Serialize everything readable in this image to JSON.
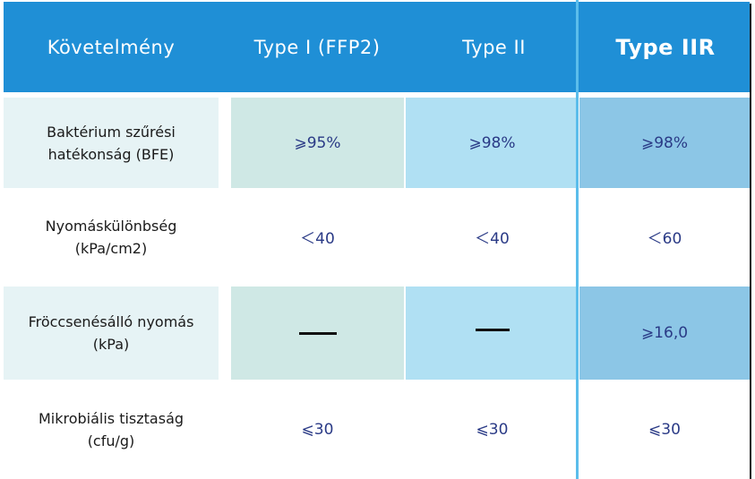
{
  "table": {
    "headers": [
      "Követelmény",
      "Type I (FFP2)",
      "Type II",
      "Type IIR"
    ],
    "rows": [
      {
        "label_line1": "Baktérium szűrési",
        "label_line2": "hatékonság (BFE)",
        "values": [
          "⩾95%",
          "⩾98%",
          "⩾98%"
        ]
      },
      {
        "label_line1": "Nyomáskülönbség",
        "label_line2": "(kPa/cm2)",
        "values": [
          "＜40",
          "＜40",
          "＜60"
        ]
      },
      {
        "label_line1": "Fröccsenésálló nyomás",
        "label_line2": "(kPa)",
        "values": [
          "—",
          "—",
          "⩾16,0"
        ]
      },
      {
        "label_line1": "Mikrobiális tisztaság",
        "label_line2": "(cfu/g)",
        "values": [
          "⩽30",
          "⩽30",
          "⩽30"
        ]
      }
    ]
  },
  "colors": {
    "header_bg": "#1f8fd6",
    "accent_line": "#5bbdeb",
    "value_text": "#2a3a86"
  }
}
